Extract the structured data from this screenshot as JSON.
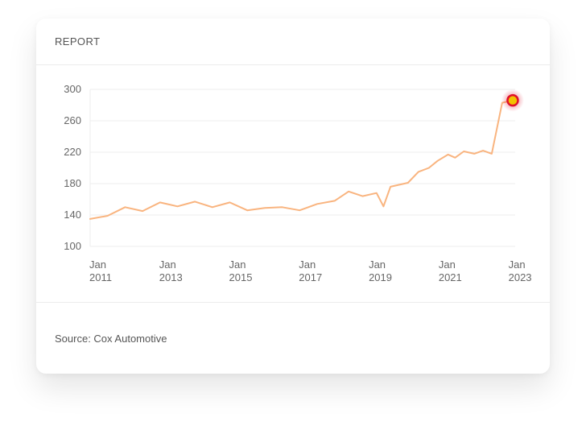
{
  "card": {
    "title": "REPORT",
    "source": "Source: Cox Automotive"
  },
  "colors": {
    "line": "#f9b47f",
    "marker_fill": "#f2c200",
    "marker_ring": "#e0102a",
    "grid": "#eeeeee",
    "tick_text": "#666666"
  },
  "chart_data": {
    "type": "line",
    "title": "",
    "xlabel": "",
    "ylabel": "",
    "ylim": [
      100,
      300
    ],
    "y_ticks": [
      100,
      140,
      180,
      220,
      260,
      300
    ],
    "xlim": [
      2011.0,
      2023.17
    ],
    "x_ticks": [
      {
        "x": 2011,
        "line1": "Jan",
        "line2": "2011"
      },
      {
        "x": 2013,
        "line1": "Jan",
        "line2": "2013"
      },
      {
        "x": 2015,
        "line1": "Jan",
        "line2": "2015"
      },
      {
        "x": 2017,
        "line1": "Jan",
        "line2": "2017"
      },
      {
        "x": 2019,
        "line1": "Jan",
        "line2": "2019"
      },
      {
        "x": 2021,
        "line1": "Jan",
        "line2": "2021"
      },
      {
        "x": 2023,
        "line1": "Jan",
        "line2": "2023"
      }
    ],
    "grid": true,
    "series": [
      {
        "x": [
          2011.0,
          2011.5,
          2012.0,
          2012.5,
          2013.0,
          2013.5,
          2014.0,
          2014.5,
          2015.0,
          2015.5,
          2016.0,
          2016.5,
          2017.0,
          2017.5,
          2018.0,
          2018.4,
          2018.8,
          2019.2,
          2019.4,
          2019.6,
          2020.1,
          2020.4,
          2020.7,
          2020.95,
          2021.25,
          2021.45,
          2021.7,
          2022.0,
          2022.25,
          2022.5,
          2022.8,
          2023.1
        ],
        "y": [
          135,
          139,
          150,
          145,
          156,
          151,
          157,
          150,
          156,
          146,
          149,
          150,
          146,
          154,
          158,
          170,
          164,
          168,
          151,
          176,
          181,
          195,
          200,
          209,
          217,
          213,
          221,
          218,
          222,
          218,
          283,
          286
        ]
      }
    ],
    "highlight": {
      "x": 2023.1,
      "y": 286
    }
  }
}
